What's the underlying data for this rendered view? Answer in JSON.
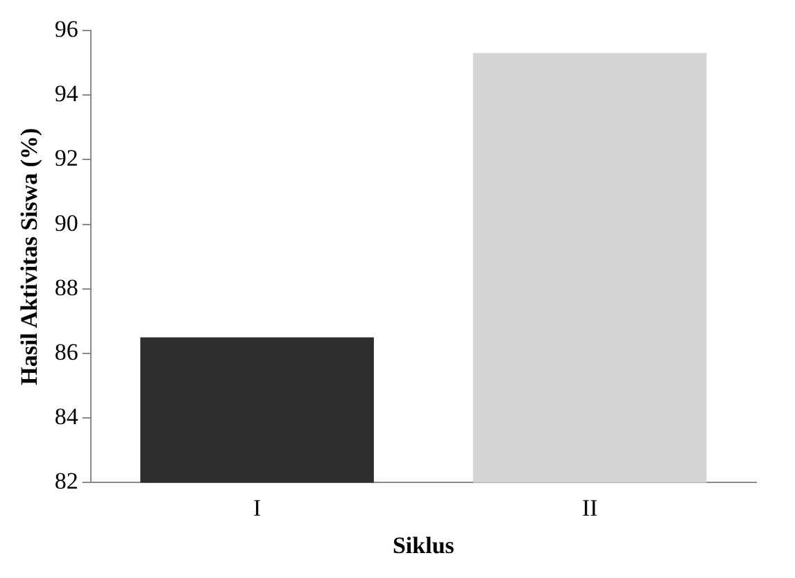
{
  "chart_data": {
    "type": "bar",
    "xlabel": "Siklus",
    "ylabel": "Hasil Aktivitas Siswa (%)",
    "categories": [
      "I",
      "II"
    ],
    "values": [
      86.5,
      95.3
    ],
    "colors": [
      "#2e2e2e",
      "#d4d4d4"
    ],
    "ylim": [
      82,
      96
    ],
    "yticks": [
      82,
      84,
      86,
      88,
      90,
      92,
      94,
      96
    ],
    "grid": false,
    "legend": false
  }
}
